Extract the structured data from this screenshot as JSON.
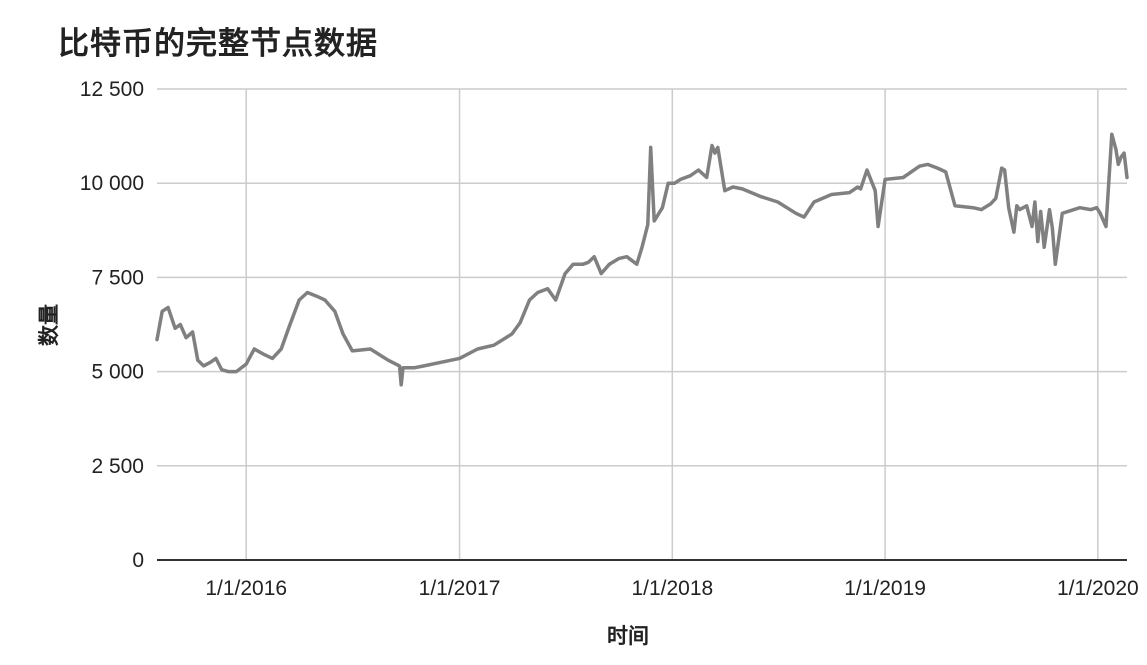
{
  "chart_data": {
    "type": "line",
    "title": "比特币的完整节点数据",
    "xlabel": "时间",
    "ylabel": "数量",
    "ylim": [
      0,
      12500
    ],
    "xlim": [
      "2015-08-01",
      "2020-02-20"
    ],
    "yticks": [
      0,
      2500,
      5000,
      7500,
      10000,
      12500
    ],
    "ytick_labels": [
      "0",
      "2 500",
      "5 000",
      "7 500",
      "10 000",
      "12 500"
    ],
    "xticks": [
      "2016-01-01",
      "2017-01-01",
      "2018-01-01",
      "2019-01-01",
      "2020-01-01"
    ],
    "xtick_labels": [
      "1/1/2016",
      "1/1/2017",
      "1/1/2018",
      "1/1/2019",
      "1/1/2020"
    ],
    "grid": true,
    "series": [
      {
        "color": "#808080",
        "x": [
          "2015-08-01",
          "2015-08-10",
          "2015-08-20",
          "2015-09-01",
          "2015-09-10",
          "2015-09-20",
          "2015-10-01",
          "2015-10-10",
          "2015-10-20",
          "2015-11-01",
          "2015-11-10",
          "2015-11-20",
          "2015-12-01",
          "2015-12-15",
          "2016-01-01",
          "2016-01-15",
          "2016-02-01",
          "2016-02-15",
          "2016-03-01",
          "2016-03-15",
          "2016-04-01",
          "2016-04-15",
          "2016-05-01",
          "2016-05-15",
          "2016-06-01",
          "2016-06-15",
          "2016-07-01",
          "2016-08-01",
          "2016-09-01",
          "2016-09-20",
          "2016-09-23",
          "2016-09-26",
          "2016-10-15",
          "2016-11-01",
          "2016-12-01",
          "2017-01-01",
          "2017-02-01",
          "2017-03-01",
          "2017-04-01",
          "2017-04-15",
          "2017-05-01",
          "2017-05-15",
          "2017-06-01",
          "2017-06-15",
          "2017-07-01",
          "2017-07-15",
          "2017-08-01",
          "2017-08-10",
          "2017-08-20",
          "2017-09-01",
          "2017-09-15",
          "2017-10-01",
          "2017-10-15",
          "2017-11-01",
          "2017-11-10",
          "2017-11-20",
          "2017-11-25",
          "2017-12-01",
          "2017-12-15",
          "2017-12-25",
          "2018-01-05",
          "2018-01-15",
          "2018-02-01",
          "2018-02-15",
          "2018-03-01",
          "2018-03-10",
          "2018-03-15",
          "2018-03-20",
          "2018-04-01",
          "2018-04-15",
          "2018-05-01",
          "2018-06-01",
          "2018-07-01",
          "2018-08-01",
          "2018-08-15",
          "2018-09-01",
          "2018-10-01",
          "2018-11-01",
          "2018-11-15",
          "2018-11-20",
          "2018-12-01",
          "2018-12-15",
          "2018-12-20",
          "2019-01-01",
          "2019-02-01",
          "2019-03-01",
          "2019-03-15",
          "2019-04-01",
          "2019-04-15",
          "2019-05-01",
          "2019-06-01",
          "2019-06-15",
          "2019-07-01",
          "2019-07-10",
          "2019-07-20",
          "2019-07-25",
          "2019-08-01",
          "2019-08-10",
          "2019-08-15",
          "2019-08-20",
          "2019-09-01",
          "2019-09-10",
          "2019-09-15",
          "2019-09-20",
          "2019-09-25",
          "2019-10-01",
          "2019-10-10",
          "2019-10-15",
          "2019-10-20",
          "2019-11-01",
          "2019-12-01",
          "2019-12-20",
          "2019-12-30",
          "2020-01-05",
          "2020-01-15",
          "2020-01-25",
          "2020-02-01",
          "2020-02-05",
          "2020-02-10",
          "2020-02-15",
          "2020-02-20"
        ],
        "y": [
          5850,
          6600,
          6700,
          6150,
          6250,
          5900,
          6050,
          5300,
          5150,
          5250,
          5350,
          5050,
          5000,
          5000,
          5200,
          5600,
          5450,
          5350,
          5600,
          6200,
          6900,
          7100,
          7000,
          6900,
          6600,
          6000,
          5550,
          5600,
          5300,
          5150,
          4650,
          5100,
          5100,
          5150,
          5250,
          5350,
          5600,
          5700,
          6000,
          6300,
          6900,
          7100,
          7200,
          6900,
          7600,
          7850,
          7850,
          7900,
          8050,
          7600,
          7850,
          8000,
          8050,
          7850,
          8300,
          8900,
          10950,
          9000,
          9350,
          10000,
          10000,
          10100,
          10200,
          10350,
          10150,
          11000,
          10800,
          10950,
          9800,
          9900,
          9850,
          9650,
          9500,
          9200,
          9100,
          9500,
          9700,
          9750,
          9900,
          9850,
          10350,
          9800,
          8850,
          10100,
          10150,
          10450,
          10500,
          10400,
          10300,
          9400,
          9350,
          9300,
          9450,
          9600,
          10400,
          10350,
          9350,
          8700,
          9400,
          9300,
          9400,
          8850,
          9500,
          8450,
          9250,
          8300,
          9300,
          8800,
          7850,
          9200,
          9350,
          9300,
          9350,
          9200,
          8850,
          11300,
          10900,
          10500,
          10700,
          10800,
          10150
        ]
      }
    ]
  }
}
